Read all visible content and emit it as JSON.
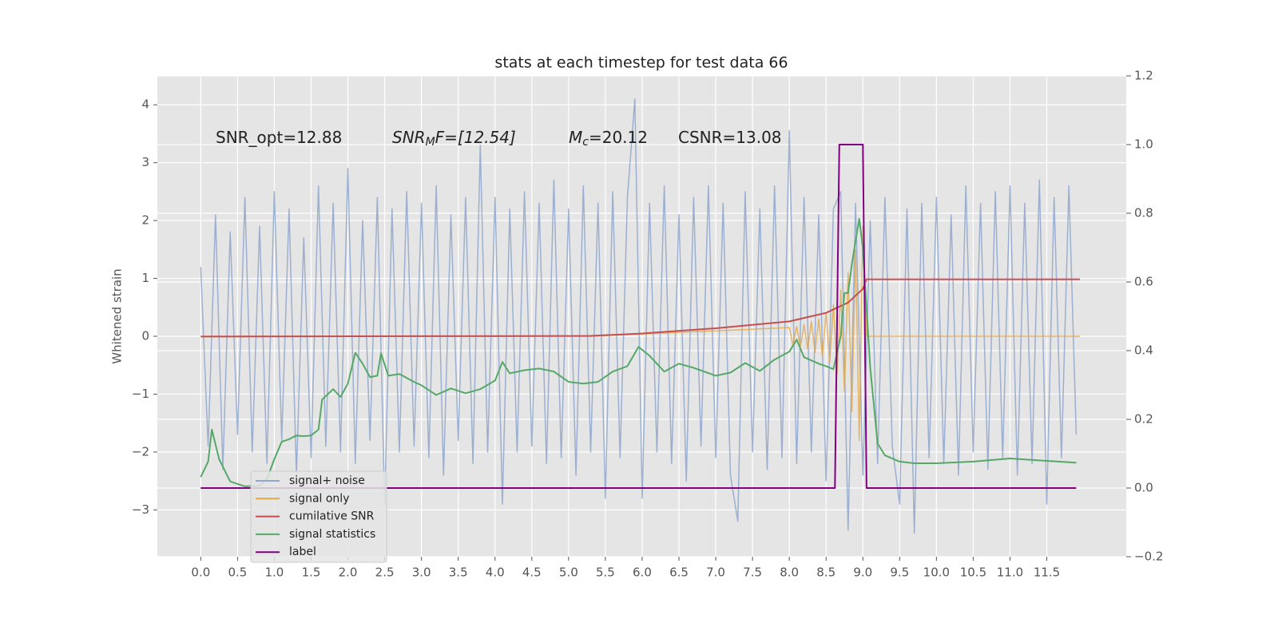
{
  "chart_data": {
    "type": "line",
    "title": "stats at each timestep for test data 66",
    "ylabel": "Whitened strain",
    "annotations": [
      {
        "parts": [
          "SNR_opt=12.88"
        ]
      },
      {
        "parts": [
          "SNR",
          "M",
          "F=[12.54]"
        ]
      },
      {
        "parts": [
          "M",
          "c",
          "=20.12"
        ]
      },
      {
        "parts": [
          "CSNR=13.08"
        ]
      }
    ],
    "xlim": [
      -0.59,
      12.58
    ],
    "ylim": [
      -3.81,
      4.5
    ],
    "y2lim": [
      -0.2,
      1.2
    ],
    "xticks": [
      {
        "value": 0,
        "label": "0.0"
      },
      {
        "value": 0.5,
        "label": "0.5"
      },
      {
        "value": 1,
        "label": "1.0"
      },
      {
        "value": 1.5,
        "label": "1.5"
      },
      {
        "value": 2,
        "label": "2.0"
      },
      {
        "value": 2.5,
        "label": "2.5"
      },
      {
        "value": 3,
        "label": "3.0"
      },
      {
        "value": 3.5,
        "label": "3.5"
      },
      {
        "value": 4,
        "label": "4.0"
      },
      {
        "value": 4.5,
        "label": "4.5"
      },
      {
        "value": 5,
        "label": "5.0"
      },
      {
        "value": 5.5,
        "label": "5.5"
      },
      {
        "value": 6,
        "label": "6.0"
      },
      {
        "value": 6.5,
        "label": "6.5"
      },
      {
        "value": 7,
        "label": "7.0"
      },
      {
        "value": 7.5,
        "label": "7.5"
      },
      {
        "value": 8,
        "label": "8.0"
      },
      {
        "value": 8.5,
        "label": "8.5"
      },
      {
        "value": 9,
        "label": "9.0"
      },
      {
        "value": 9.5,
        "label": "9.5"
      },
      {
        "value": 10,
        "label": "10.0"
      },
      {
        "value": 10.5,
        "label": "10.5"
      },
      {
        "value": 11,
        "label": "11.0"
      },
      {
        "value": 11.5,
        "label": "11.5"
      }
    ],
    "yticks": [
      {
        "value": -3,
        "label": "−3"
      },
      {
        "value": -2,
        "label": "−2"
      },
      {
        "value": -1,
        "label": "−1"
      },
      0,
      1,
      2,
      3,
      4
    ],
    "y2ticks": [
      {
        "value": -0.2,
        "label": "−0.2"
      },
      {
        "value": 0,
        "label": "0.0"
      },
      {
        "value": 0.2,
        "label": "0.2"
      },
      {
        "value": 0.4,
        "label": "0.4"
      },
      {
        "value": 0.6,
        "label": "0.6"
      },
      {
        "value": 0.8,
        "label": "0.8"
      },
      {
        "value": 1,
        "label": "1.0"
      },
      {
        "value": 1.2,
        "label": "1.2"
      }
    ],
    "grid": true,
    "legend": "lower left",
    "series": [
      {
        "name": "signal+ noise",
        "color": "#8fa6cd",
        "x": [
          0,
          0.1,
          0.2,
          0.3,
          0.4,
          0.5,
          0.6,
          0.7,
          0.8,
          0.9,
          1,
          1.1,
          1.2,
          1.3,
          1.4,
          1.5,
          1.6,
          1.7,
          1.8,
          1.9,
          2,
          2.1,
          2.2,
          2.3,
          2.4,
          2.5,
          2.6,
          2.7,
          2.8,
          2.9,
          3,
          3.1,
          3.2,
          3.3,
          3.4,
          3.5,
          3.6,
          3.7,
          3.8,
          3.9,
          4,
          4.1,
          4.2,
          4.3,
          4.4,
          4.5,
          4.6,
          4.7,
          4.8,
          4.9,
          5,
          5.1,
          5.2,
          5.3,
          5.4,
          5.5,
          5.6,
          5.7,
          5.8,
          5.9,
          6,
          6.1,
          6.2,
          6.3,
          6.4,
          6.5,
          6.6,
          6.7,
          6.8,
          6.9,
          7,
          7.1,
          7.2,
          7.3,
          7.4,
          7.5,
          7.6,
          7.7,
          7.8,
          7.9,
          8,
          8.1,
          8.2,
          8.3,
          8.4,
          8.5,
          8.6,
          8.7,
          8.8,
          8.9,
          9,
          9.1,
          9.2,
          9.3,
          9.4,
          9.5,
          9.6,
          9.7,
          9.8,
          9.9,
          10,
          10.1,
          10.2,
          10.3,
          10.4,
          10.5,
          10.6,
          10.7,
          10.8,
          10.9,
          11,
          11.1,
          11.2,
          11.3,
          11.4,
          11.5,
          11.6,
          11.7,
          11.8,
          11.9
        ],
        "values": [
          1.2,
          -1.9,
          2.1,
          -2.3,
          1.8,
          -1.7,
          2.4,
          -2.0,
          1.9,
          -2.2,
          2.5,
          -1.8,
          2.2,
          -2.4,
          1.7,
          -2.1,
          2.6,
          -1.9,
          2.3,
          -2.0,
          2.9,
          -2.2,
          2.0,
          -1.8,
          2.4,
          -2.9,
          2.2,
          -2.0,
          2.5,
          -1.9,
          2.3,
          -2.1,
          2.6,
          -2.4,
          2.1,
          -1.8,
          2.4,
          -2.2,
          3.3,
          -2.0,
          2.4,
          -2.9,
          2.2,
          -2.0,
          2.5,
          -1.9,
          2.3,
          -2.2,
          2.7,
          -2.1,
          2.2,
          -2.4,
          2.6,
          -2.0,
          2.3,
          -2.8,
          2.5,
          -2.1,
          2.4,
          4.1,
          -2.8,
          2.3,
          -2.0,
          2.6,
          -2.2,
          2.1,
          -2.5,
          2.4,
          -1.9,
          2.6,
          -2.1,
          2.3,
          -2.4,
          -3.2,
          2.5,
          -2.0,
          2.2,
          -2.3,
          2.6,
          -2.1,
          3.55,
          -2.2,
          2.4,
          -2.0,
          2.1,
          -2.5,
          2.2,
          2.5,
          -3.35,
          2.3,
          -2.4,
          2.0,
          -2.2,
          2.4,
          -1.9,
          -2.9,
          2.2,
          -3.4,
          2.3,
          -2.1,
          2.4,
          -2.2,
          2.1,
          -2.4,
          2.6,
          -2.0,
          2.3,
          -2.3,
          2.5,
          -2.1,
          2.6,
          -2.4,
          2.3,
          -2.2,
          2.7,
          -2.9,
          2.4,
          -2.1,
          2.6,
          -1.7
        ]
      },
      {
        "name": "signal only",
        "color": "#e0a84a",
        "x": [
          0,
          5.3,
          8,
          8.05,
          8.1,
          8.15,
          8.2,
          8.25,
          8.3,
          8.35,
          8.4,
          8.45,
          8.5,
          8.55,
          8.6,
          8.65,
          8.7,
          8.75,
          8.8,
          8.85,
          8.9,
          8.95,
          9,
          9.05,
          11.95
        ],
        "values": [
          0,
          0,
          0.15,
          -0.15,
          0.17,
          -0.18,
          0.2,
          -0.22,
          0.25,
          -0.28,
          0.3,
          -0.35,
          0.4,
          -0.45,
          0.55,
          -0.65,
          0.8,
          -0.95,
          1.1,
          -1.3,
          1.5,
          -1.8,
          1.9,
          0,
          0
        ]
      },
      {
        "name": "cumilative SNR",
        "color": "#c44e52",
        "axis": "y2",
        "x": [
          0,
          5.3,
          6,
          7,
          8,
          8.5,
          8.8,
          9,
          9.05,
          11.95
        ],
        "values": [
          0.441,
          0.443,
          0.45,
          0.465,
          0.485,
          0.51,
          0.54,
          0.58,
          0.608,
          0.608
        ]
      },
      {
        "name": "signal statistics",
        "color": "#55a868",
        "axis": "y2",
        "x": [
          0,
          0.1,
          0.15,
          0.25,
          0.4,
          0.6,
          0.8,
          0.9,
          1,
          1.1,
          1.2,
          1.3,
          1.4,
          1.5,
          1.6,
          1.65,
          1.8,
          1.9,
          2,
          2.1,
          2.2,
          2.3,
          2.4,
          2.45,
          2.55,
          2.7,
          2.9,
          3,
          3.2,
          3.4,
          3.6,
          3.8,
          4,
          4.1,
          4.2,
          4.4,
          4.6,
          4.8,
          5,
          5.2,
          5.4,
          5.6,
          5.8,
          5.95,
          6.1,
          6.3,
          6.5,
          6.7,
          7,
          7.2,
          7.4,
          7.6,
          7.8,
          8,
          8.1,
          8.2,
          8.4,
          8.5,
          8.6,
          8.7,
          8.75,
          8.8,
          8.85,
          8.95,
          9,
          9.1,
          9.2,
          9.3,
          9.5,
          9.7,
          10,
          10.5,
          11,
          11.5,
          11.9
        ],
        "values": [
          0.032,
          0.077,
          0.17,
          0.084,
          0.019,
          0.005,
          0.007,
          0.026,
          0.084,
          0.135,
          0.142,
          0.153,
          0.151,
          0.153,
          0.17,
          0.258,
          0.288,
          0.265,
          0.304,
          0.394,
          0.362,
          0.323,
          0.327,
          0.392,
          0.327,
          0.332,
          0.309,
          0.299,
          0.271,
          0.29,
          0.276,
          0.288,
          0.313,
          0.367,
          0.334,
          0.343,
          0.348,
          0.339,
          0.309,
          0.304,
          0.309,
          0.339,
          0.355,
          0.411,
          0.385,
          0.339,
          0.362,
          0.35,
          0.327,
          0.336,
          0.364,
          0.341,
          0.374,
          0.397,
          0.432,
          0.381,
          0.362,
          0.355,
          0.346,
          0.443,
          0.568,
          0.568,
          0.652,
          0.784,
          0.698,
          0.35,
          0.13,
          0.095,
          0.077,
          0.072,
          0.072,
          0.077,
          0.086,
          0.079,
          0.074
        ]
      },
      {
        "name": "label",
        "color": "#800080",
        "axis": "y2",
        "x": [
          0,
          8.62,
          8.68,
          9,
          9.05,
          11.9
        ],
        "values": [
          0,
          0,
          1,
          1,
          0,
          0
        ]
      }
    ]
  }
}
